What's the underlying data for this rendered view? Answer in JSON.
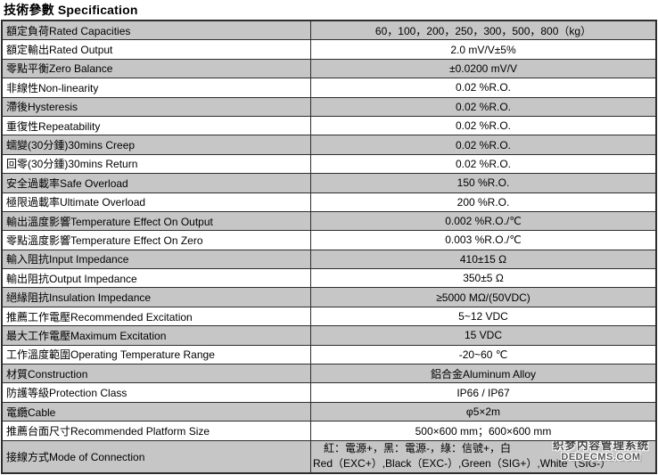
{
  "page": {
    "title": "技術參數 Specification"
  },
  "table": {
    "rows": [
      {
        "label": "額定負荷Rated Capacities",
        "value": "60，100，200，250，300，500，800（kg）"
      },
      {
        "label": "額定輸出Rated Output",
        "value": "2.0 mV/V±5%"
      },
      {
        "label": "零點平衡Zero Balance",
        "value": "±0.0200 mV/V"
      },
      {
        "label": "非線性Non-linearity",
        "value": "0.02 %R.O."
      },
      {
        "label": "滯後Hysteresis",
        "value": "0.02 %R.O."
      },
      {
        "label": "重復性Repeatability",
        "value": "0.02 %R.O."
      },
      {
        "label": "蠕變(30分鍾)30mins Creep",
        "value": "0.02 %R.O."
      },
      {
        "label": "回零(30分鍾)30mins Return",
        "value": "0.02 %R.O."
      },
      {
        "label": "安全過載率Safe Overload",
        "value": "150 %R.O."
      },
      {
        "label": "極限過載率Ultimate Overload",
        "value": "200 %R.O."
      },
      {
        "label": "輸出溫度影響Temperature Effect On Output",
        "value": "0.002 %R.O./℃"
      },
      {
        "label": "零點溫度影響Temperature Effect On Zero",
        "value": "0.003 %R.O./℃"
      },
      {
        "label": "輸入阻抗Input Impedance",
        "value": "410±15 Ω"
      },
      {
        "label": "輸出阻抗Output Impedance",
        "value": "350±5 Ω"
      },
      {
        "label": "絕緣阻抗Insulation Impedance",
        "value": "≥5000 MΩ/(50VDC)"
      },
      {
        "label": "推薦工作電壓Recommended Excitation",
        "value": "5~12 VDC"
      },
      {
        "label": "最大工作電壓Maximum Excitation",
        "value": "15 VDC"
      },
      {
        "label": "工作溫度範圍Operating Temperature Range",
        "value": "-20~60 ℃"
      },
      {
        "label": "材質Construction",
        "value": "鋁合金Aluminum Alloy"
      },
      {
        "label": "防護等級Protection Class",
        "value": "IP66 / IP67"
      },
      {
        "label": "電纜Cable",
        "value": "φ5×2m"
      },
      {
        "label": "推薦台面尺寸Recommended Platform Size",
        "value": "500×600 mm；600×600 mm"
      }
    ],
    "connection_row": {
      "label": "接線方式Mode of Connection",
      "value_line1": "紅：電源+，黑：電源-，綠：信號+，白",
      "value_line2": "Red（EXC+）,Black（EXC-）,Green（SIG+）,White（SIG-）"
    }
  },
  "watermark": {
    "line1": "织梦内容管理系统",
    "line2": "DEDECMS.COM"
  },
  "colors": {
    "row_shaded": "#c6c6c6",
    "row_plain": "#ffffff",
    "border": "#2e2e2e",
    "text": "#000000",
    "watermark_text": "#474747"
  }
}
